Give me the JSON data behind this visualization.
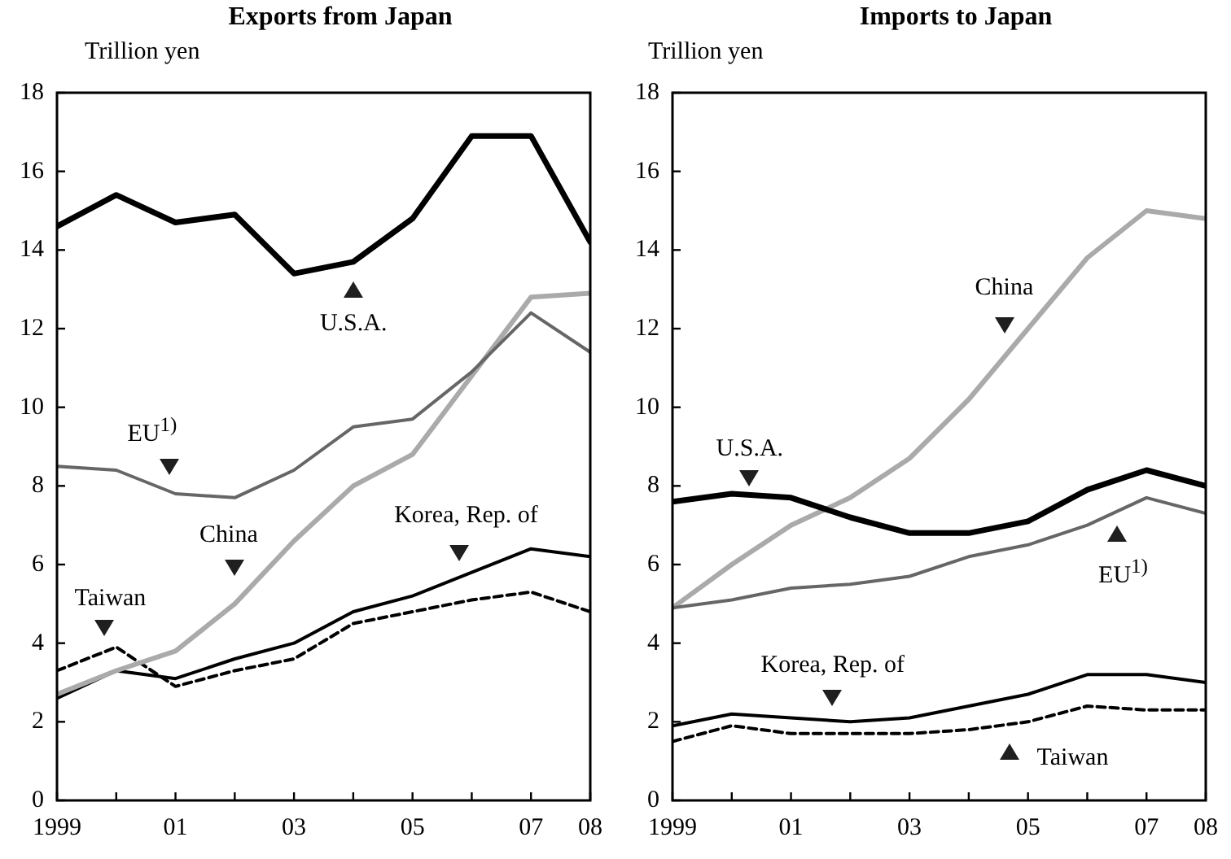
{
  "chart_data": [
    {
      "type": "line",
      "title": "Exports from Japan",
      "ylabel": "Trillion yen",
      "x": [
        1999,
        2000,
        2001,
        2002,
        2003,
        2004,
        2005,
        2006,
        2007,
        2008
      ],
      "xlim": [
        1999,
        2008
      ],
      "ylim": [
        0,
        18
      ],
      "xticks": [
        1999,
        {
          "value": 2000,
          "label": null
        },
        {
          "value": 2001,
          "label": "01"
        },
        {
          "value": 2002,
          "label": null
        },
        {
          "value": 2003,
          "label": "03"
        },
        {
          "value": 2004,
          "label": null
        },
        {
          "value": 2005,
          "label": "05"
        },
        {
          "value": 2006,
          "label": null
        },
        {
          "value": 2007,
          "label": "07"
        },
        {
          "value": 2008,
          "label": "08"
        }
      ],
      "yticks": [
        0,
        2,
        4,
        6,
        8,
        10,
        12,
        14,
        16,
        18
      ],
      "grid": false,
      "legend": false,
      "marker": "none",
      "series": [
        {
          "name": "U.S.A.",
          "color": "#000000",
          "values": [
            14.6,
            15.4,
            14.7,
            14.9,
            13.4,
            13.7,
            14.8,
            16.9,
            16.9,
            14.2
          ]
        },
        {
          "name": "EU$^{1)}$",
          "color": "#666666",
          "values": [
            8.5,
            8.4,
            7.8,
            7.7,
            8.4,
            9.5,
            9.7,
            10.9,
            12.4,
            11.4
          ]
        },
        {
          "name": "China",
          "color": "#aaaaaa",
          "values": [
            2.7,
            3.3,
            3.8,
            5.0,
            6.6,
            8.0,
            8.8,
            10.8,
            12.8,
            12.9
          ]
        },
        {
          "name": "Korea, Rep. of",
          "color": "#000000",
          "values": [
            2.6,
            3.3,
            3.1,
            3.6,
            4.0,
            4.8,
            5.2,
            5.8,
            6.4,
            6.2
          ]
        },
        {
          "name": "Taiwan",
          "color": "#000000",
          "line_style": "dashed",
          "values": [
            3.3,
            3.9,
            2.9,
            3.3,
            3.6,
            4.5,
            4.8,
            5.1,
            5.3,
            4.8
          ]
        }
      ]
    },
    {
      "type": "line",
      "title": "Imports to Japan",
      "ylabel": "Trillion yen",
      "x": [
        1999,
        2000,
        2001,
        2002,
        2003,
        2004,
        2005,
        2006,
        2007,
        2008
      ],
      "xlim": [
        1999,
        2008
      ],
      "ylim": [
        0,
        18
      ],
      "xticks": [
        1999,
        {
          "value": 2000,
          "label": null
        },
        {
          "value": 2001,
          "label": "01"
        },
        {
          "value": 2002,
          "label": null
        },
        {
          "value": 2003,
          "label": "03"
        },
        {
          "value": 2004,
          "label": null
        },
        {
          "value": 2005,
          "label": "05"
        },
        {
          "value": 2006,
          "label": null
        },
        {
          "value": 2007,
          "label": "07"
        },
        {
          "value": 2008,
          "label": "08"
        }
      ],
      "yticks": [
        0,
        2,
        4,
        6,
        8,
        10,
        12,
        14,
        16,
        18
      ],
      "grid": false,
      "legend": false,
      "marker": "none",
      "series": [
        {
          "name": "U.S.A.",
          "color": "#000000",
          "values": [
            7.6,
            7.8,
            7.7,
            7.2,
            6.8,
            6.8,
            7.1,
            7.9,
            8.4,
            8.0
          ]
        },
        {
          "name": "EU$^{1)}$",
          "color": "#666666",
          "values": [
            4.9,
            5.1,
            5.4,
            5.5,
            5.7,
            6.2,
            6.5,
            7.0,
            7.7,
            7.3
          ]
        },
        {
          "name": "China",
          "color": "#aaaaaa",
          "values": [
            4.9,
            6.0,
            7.0,
            7.7,
            8.7,
            10.2,
            12.0,
            13.8,
            15.0,
            14.8
          ]
        },
        {
          "name": "Korea, Rep. of",
          "color": "#000000",
          "values": [
            1.9,
            2.2,
            2.1,
            2.0,
            2.1,
            2.4,
            2.7,
            3.2,
            3.2,
            3.0
          ]
        },
        {
          "name": "Taiwan",
          "color": "#000000",
          "line_style": "dashed",
          "values": [
            1.5,
            1.9,
            1.7,
            1.7,
            1.7,
            1.8,
            2.0,
            2.4,
            2.3,
            2.3
          ]
        }
      ]
    }
  ]
}
